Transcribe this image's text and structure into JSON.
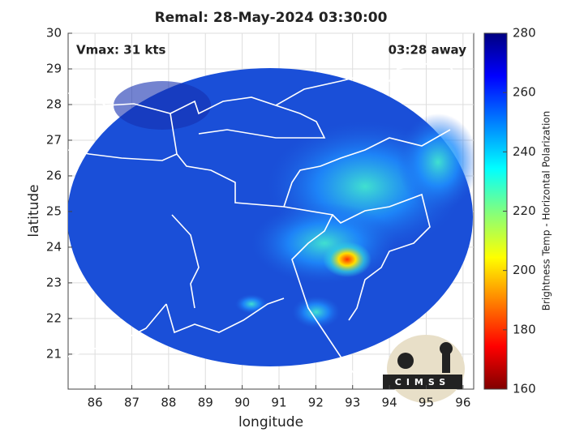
{
  "chart_data": {
    "type": "map",
    "title": "Remal: 28-May-2024 03:30:00",
    "xlabel": "longitude",
    "ylabel": "latitude",
    "xlim": [
      85.27,
      96.29
    ],
    "ylim": [
      20.02,
      30
    ],
    "xticks": [
      86,
      87,
      88,
      89,
      90,
      91,
      92,
      93,
      94,
      95,
      96
    ],
    "yticks": [
      21,
      22,
      23,
      24,
      25,
      26,
      27,
      28,
      29,
      30
    ],
    "grid": true,
    "annotations": [
      "Vmax: 31 kts",
      "03:28 away"
    ],
    "logo": "CIMSS",
    "colorbar": {
      "label": "Brightness Temp - Horizontal Polarization",
      "lim": [
        160,
        280
      ],
      "ticks": [
        160,
        180,
        200,
        220,
        240,
        260,
        280
      ]
    }
  }
}
